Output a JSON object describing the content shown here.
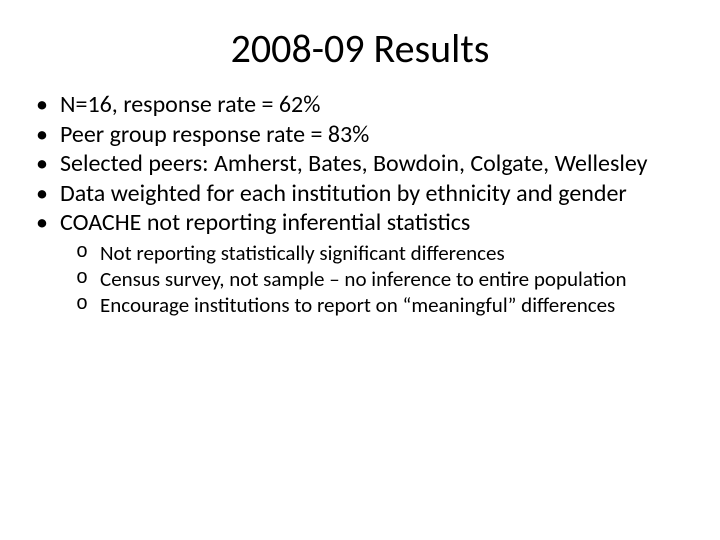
{
  "title": "2008-09 Results",
  "title_fontsize": 40,
  "body_fontsize": 24,
  "sub_fontsize": 21,
  "text_color": "#000000",
  "background_color": "#ffffff",
  "bullets": [
    "N=16, response rate = 62%",
    "Peer group response rate = 83%",
    "Selected peers: Amherst, Bates, Bowdoin, Colgate, Wellesley",
    "Data weighted for each institution by ethnicity and gender",
    "COACHE not reporting inferential statistics"
  ],
  "sub_bullets": [
    "Not reporting statistically significant differences",
    "Census survey, not sample – no inference to entire population",
    "Encourage institutions to report on “meaningful” differences"
  ]
}
